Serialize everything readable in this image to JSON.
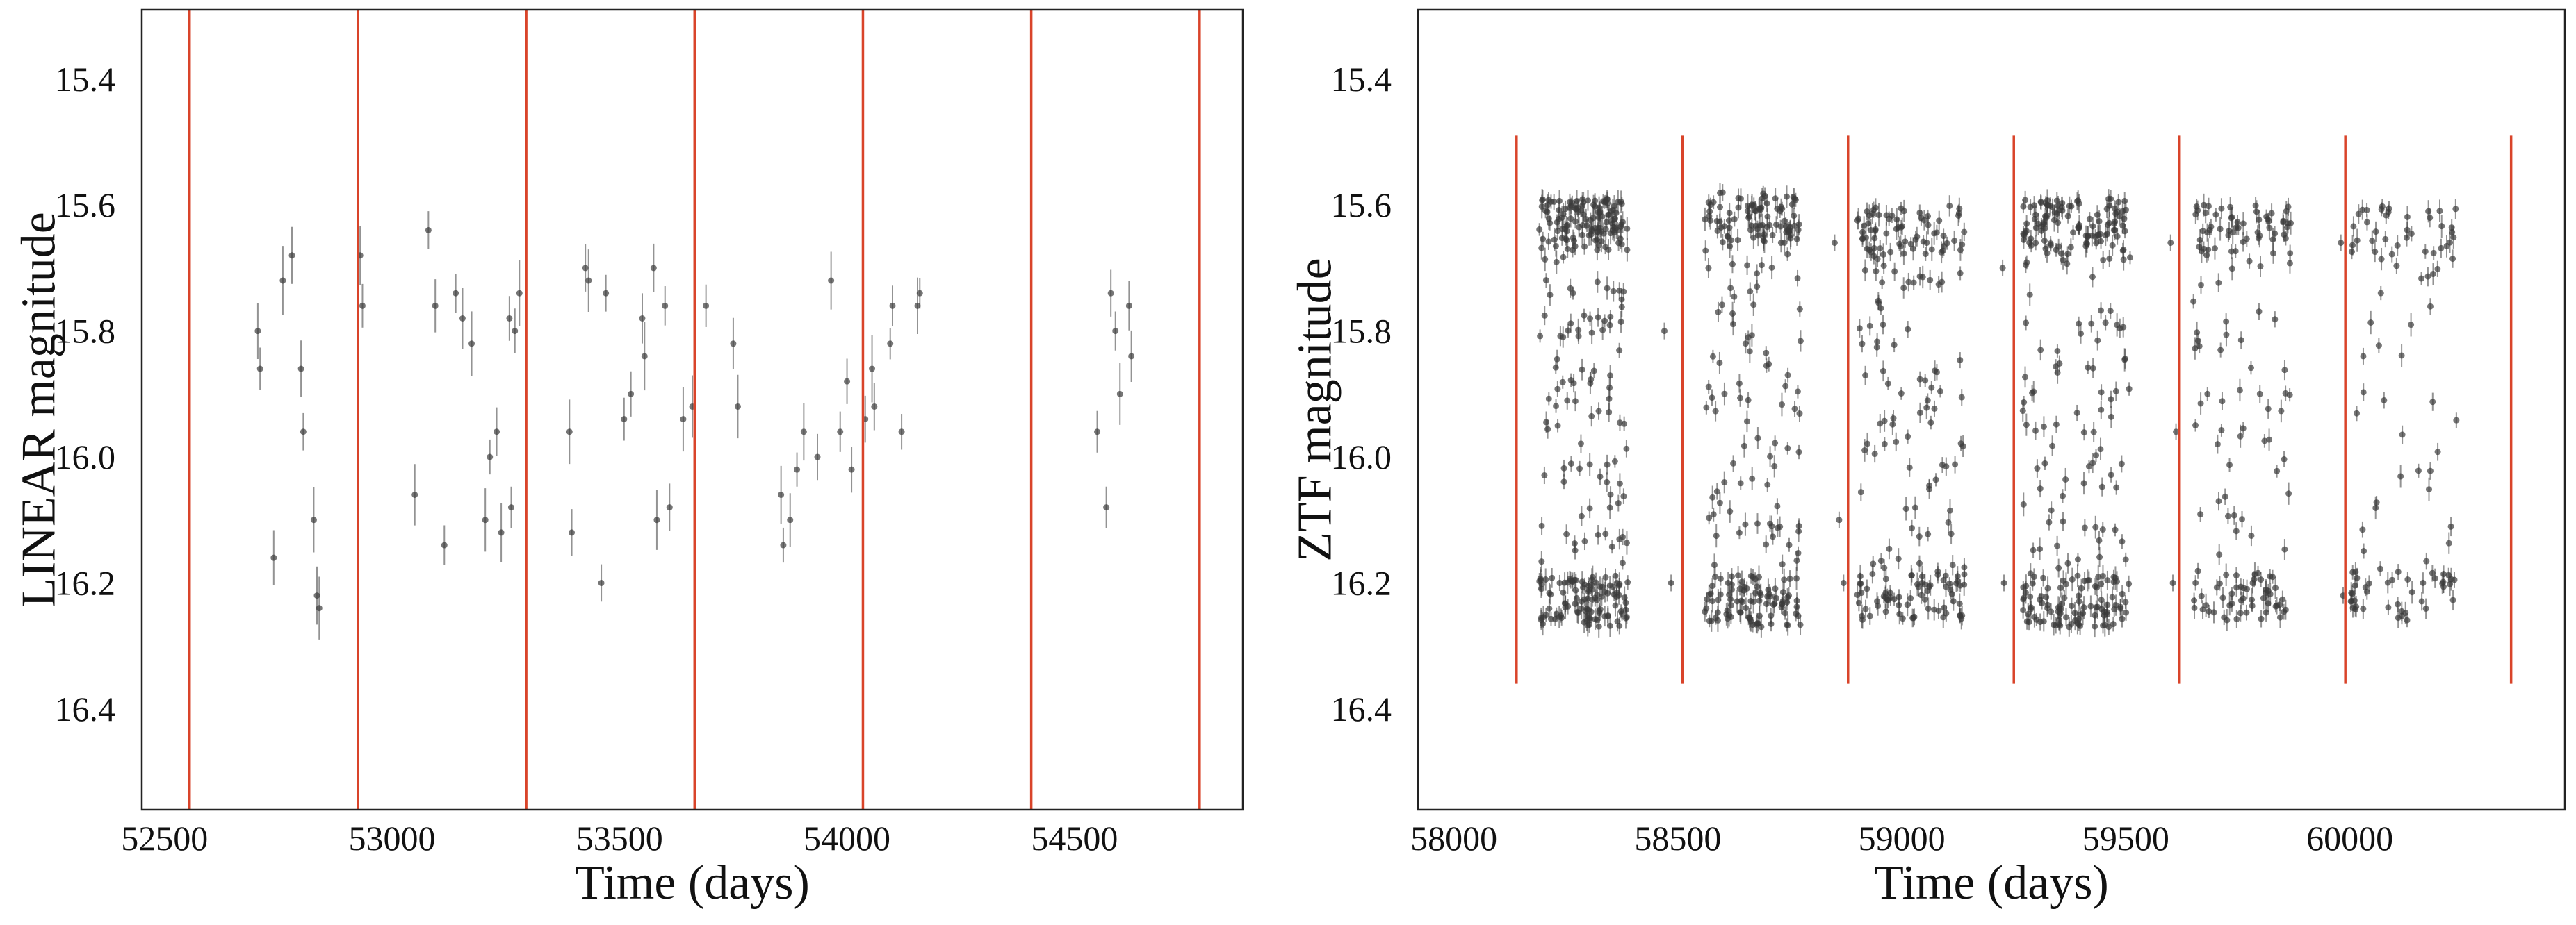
{
  "chart_data": [
    {
      "type": "scatter",
      "xlabel": "Time (days)",
      "ylabel": "LINEAR magnitude",
      "xlim": [
        52450,
        54870
      ],
      "ylim": [
        16.56,
        15.29
      ],
      "y_inverted": true,
      "grid": false,
      "x_ticks": [
        52500,
        53000,
        53500,
        54000,
        54500
      ],
      "y_ticks": [
        15.4,
        15.6,
        15.8,
        16.0,
        16.2,
        16.4
      ],
      "x_tick_labels": [
        "52500",
        "53000",
        "53500",
        "54000",
        "54500"
      ],
      "y_tick_labels": [
        "15.4",
        "15.6",
        "15.8",
        "16.0",
        "16.2",
        "16.4"
      ],
      "marker_color": "#3a3a3a",
      "vline_color": "#d9442a",
      "vlines": [
        52555,
        52925,
        53295,
        53665,
        54035,
        54405,
        54775
      ],
      "vline_span": "full",
      "series": [
        {
          "x": [
            52705,
            52710,
            52740,
            52760,
            52780,
            52800,
            52805,
            52828,
            52835,
            52840,
            52930,
            52935,
            53050,
            53080,
            53095,
            53115,
            53140,
            53155,
            53175,
            53205,
            53215,
            53230,
            53240,
            53258,
            53262,
            53270,
            53280,
            53390,
            53395,
            53425,
            53432,
            53460,
            53470,
            53510,
            53525,
            53550,
            53555,
            53575,
            53582,
            53600,
            53610,
            53640,
            53660,
            53690,
            53750,
            53760,
            53855,
            53860,
            53875,
            53890,
            53905,
            53935,
            53965,
            53985,
            54000,
            54010,
            54040,
            54055,
            54060,
            54095,
            54100,
            54120,
            54155,
            54160,
            54550,
            54570,
            54580,
            54590,
            54600,
            54620,
            54625
          ],
          "y": [
            15.8,
            15.86,
            16.16,
            15.72,
            15.68,
            15.86,
            15.96,
            16.1,
            16.22,
            16.24,
            15.68,
            15.76,
            16.06,
            15.64,
            15.76,
            16.14,
            15.74,
            15.78,
            15.82,
            16.1,
            16.0,
            15.96,
            16.12,
            15.78,
            16.08,
            15.8,
            15.74,
            15.96,
            16.12,
            15.7,
            15.72,
            16.2,
            15.74,
            15.94,
            15.9,
            15.78,
            15.84,
            15.7,
            16.1,
            15.76,
            16.08,
            15.94,
            15.92,
            15.76,
            15.82,
            15.92,
            16.06,
            16.14,
            16.1,
            16.02,
            15.96,
            16.0,
            15.72,
            15.96,
            15.88,
            16.02,
            15.94,
            15.86,
            15.92,
            15.82,
            15.76,
            15.96,
            15.76,
            15.74,
            15.96,
            16.08,
            15.74,
            15.8,
            15.9,
            15.76,
            15.84
          ]
        }
      ]
    },
    {
      "type": "scatter",
      "xlabel": "Time (days)",
      "ylabel": "ZTF magnitude",
      "xlim": [
        57920,
        60480
      ],
      "ylim": [
        16.56,
        15.29
      ],
      "y_inverted": true,
      "grid": false,
      "x_ticks": [
        58000,
        58500,
        59000,
        59500,
        60000
      ],
      "y_ticks": [
        15.4,
        15.6,
        15.8,
        16.0,
        16.2,
        16.4
      ],
      "x_tick_labels": [
        "58000",
        "58500",
        "59000",
        "59500",
        "60000"
      ],
      "y_tick_labels": [
        "15.4",
        "15.6",
        "15.8",
        "16.0",
        "16.2",
        "16.4"
      ],
      "marker_color": "#3a3a3a",
      "vline_color": "#d9442a",
      "vlines": [
        58140,
        58510,
        58880,
        59250,
        59620,
        59990,
        60360
      ],
      "vline_ylim": [
        15.49,
        16.36
      ],
      "note_series": "dense observing seasons; each season has many points spread between magnitude 15.6 and 16.25",
      "seasons": [
        {
          "x_range": [
            58190,
            58390
          ],
          "y_range": [
            15.59,
            16.27
          ],
          "n": 320
        },
        {
          "x_range": [
            58560,
            58775
          ],
          "y_range": [
            15.58,
            16.27
          ],
          "n": 260
        },
        {
          "x_range": [
            58900,
            59140
          ],
          "y_range": [
            15.6,
            16.26
          ],
          "n": 220
        },
        {
          "x_range": [
            59270,
            59510
          ],
          "y_range": [
            15.59,
            16.27
          ],
          "n": 290
        },
        {
          "x_range": [
            59650,
            59870
          ],
          "y_range": [
            15.6,
            16.26
          ],
          "n": 160
        },
        {
          "x_range": [
            60000,
            60240
          ],
          "y_range": [
            15.6,
            16.26
          ],
          "n": 110
        }
      ],
      "isolated_points": [
        {
          "x": 58470,
          "y": 15.8
        },
        {
          "x": 58485,
          "y": 16.2
        },
        {
          "x": 58600,
          "y": 15.58
        },
        {
          "x": 58850,
          "y": 15.66
        },
        {
          "x": 58860,
          "y": 16.1
        },
        {
          "x": 58870,
          "y": 16.2
        },
        {
          "x": 59225,
          "y": 15.7
        },
        {
          "x": 59228,
          "y": 16.2
        },
        {
          "x": 59600,
          "y": 15.66
        },
        {
          "x": 59605,
          "y": 16.2
        },
        {
          "x": 59612,
          "y": 15.96
        },
        {
          "x": 59980,
          "y": 15.66
        },
        {
          "x": 59985,
          "y": 16.22
        },
        {
          "x": 60030,
          "y": 15.84
        }
      ]
    }
  ]
}
